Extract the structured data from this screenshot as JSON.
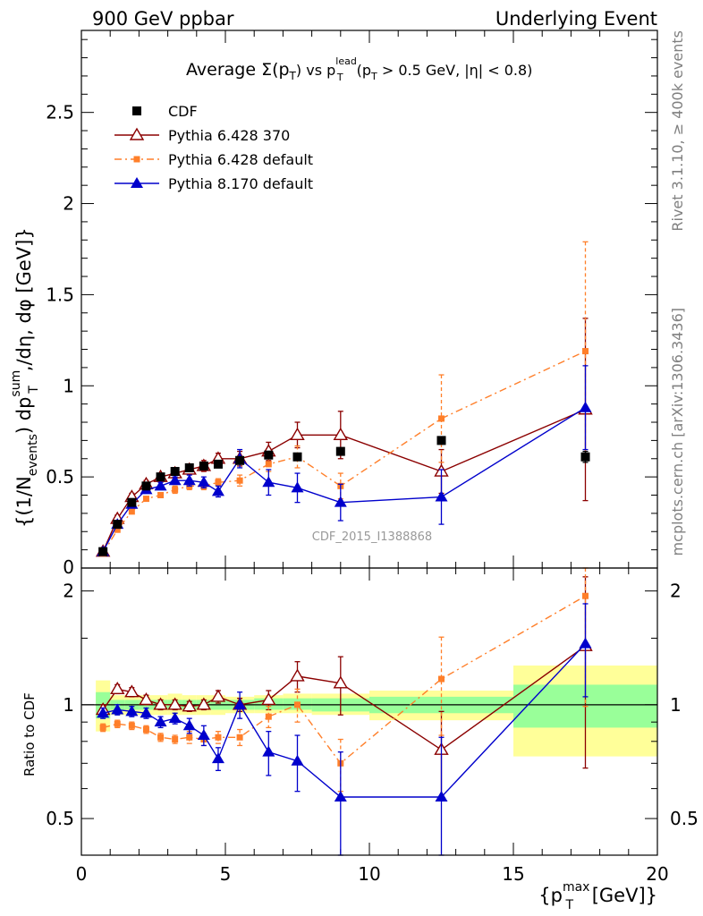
{
  "header": {
    "left": "900 GeV ppbar",
    "right": "Underlying Event"
  },
  "side": {
    "rivet": "Rivet 3.1.10, ≥ 400k events",
    "mcplots": "mcplots.cern.ch [arXiv:1306.3436]"
  },
  "watermark": "CDF_2015_I1388868",
  "chart_data": [
    {
      "type": "scatter",
      "title": {
        "prefix": "Average ",
        "sigma": "Σ(p",
        "sigma_sub": "T",
        "vs": ") vs p",
        "lead_sup": "lead",
        "lead_sub": "T",
        "cut_a": " (p",
        "cut_sub": "T",
        "cut_b": " > 0.5 GeV, |η| < 0.8)"
      },
      "ylabel": {
        "a": "{(1/N",
        "a_sub": "events",
        "b": ") dp",
        "b_sup": "sum",
        "b_sub": "T",
        "c": ",/dη, dφ [GeV]}"
      },
      "ylim": [
        0,
        2.95
      ],
      "xlim": [
        0,
        20
      ],
      "yticks": [
        0.5,
        1,
        1.5,
        2,
        2.5
      ],
      "ytick_labels": [
        "0.5",
        "1",
        "1.5",
        "2",
        "2.5"
      ],
      "y_zero_label": "0",
      "legend_position": "top-left",
      "series": [
        {
          "name": "CDF",
          "color": "#000000",
          "marker": "square",
          "x": [
            0.75,
            1.25,
            1.75,
            2.25,
            2.75,
            3.25,
            3.75,
            4.25,
            4.75,
            5.5,
            6.5,
            7.5,
            9.0,
            12.5,
            17.5
          ],
          "y": [
            0.09,
            0.24,
            0.36,
            0.45,
            0.5,
            0.53,
            0.55,
            0.56,
            0.57,
            0.59,
            0.62,
            0.61,
            0.64,
            0.7,
            0.61
          ],
          "err": [
            0.01,
            0.01,
            0.01,
            0.01,
            0.01,
            0.01,
            0.01,
            0.01,
            0.01,
            0.01,
            0.01,
            0.01,
            0.02,
            0.02,
            0.03
          ]
        },
        {
          "name": "Pythia 6.428 370",
          "color": "#8b0000",
          "marker": "triangle-open",
          "line": "solid",
          "x": [
            0.75,
            1.25,
            1.75,
            2.25,
            2.75,
            3.25,
            3.75,
            4.25,
            4.75,
            5.5,
            6.5,
            7.5,
            9.0,
            12.5,
            17.5
          ],
          "y": [
            0.09,
            0.27,
            0.39,
            0.46,
            0.5,
            0.52,
            0.54,
            0.56,
            0.6,
            0.6,
            0.64,
            0.73,
            0.73,
            0.53,
            0.87
          ],
          "err": [
            0.01,
            0.02,
            0.02,
            0.02,
            0.02,
            0.02,
            0.02,
            0.03,
            0.03,
            0.04,
            0.05,
            0.07,
            0.13,
            0.12,
            0.5
          ]
        },
        {
          "name": "Pythia 6.428 default",
          "color": "#ff7f2a",
          "marker": "square-small",
          "line": "dashdot",
          "x": [
            0.75,
            1.25,
            1.75,
            2.25,
            2.75,
            3.25,
            3.75,
            4.25,
            4.75,
            5.5,
            6.5,
            7.5,
            9.0,
            12.5,
            17.5
          ],
          "y": [
            0.08,
            0.21,
            0.31,
            0.38,
            0.4,
            0.43,
            0.45,
            0.45,
            0.47,
            0.48,
            0.57,
            0.61,
            0.45,
            0.82,
            1.19
          ],
          "err": [
            0.01,
            0.01,
            0.01,
            0.01,
            0.01,
            0.02,
            0.02,
            0.02,
            0.02,
            0.03,
            0.04,
            0.06,
            0.07,
            0.24,
            0.6
          ]
        },
        {
          "name": "Pythia 8.170 default",
          "color": "#0000cc",
          "marker": "triangle-filled",
          "line": "solid",
          "x": [
            0.75,
            1.25,
            1.75,
            2.25,
            2.75,
            3.25,
            3.75,
            4.25,
            4.75,
            5.5,
            6.5,
            7.5,
            9.0,
            12.5,
            17.5
          ],
          "y": [
            0.09,
            0.24,
            0.35,
            0.43,
            0.45,
            0.48,
            0.48,
            0.47,
            0.42,
            0.6,
            0.47,
            0.44,
            0.36,
            0.39,
            0.88
          ],
          "err": [
            0.01,
            0.01,
            0.02,
            0.02,
            0.02,
            0.02,
            0.03,
            0.03,
            0.03,
            0.05,
            0.07,
            0.08,
            0.1,
            0.15,
            0.23
          ]
        }
      ]
    },
    {
      "type": "scatter",
      "ylabel": "Ratio to CDF",
      "xlabel": {
        "a": "{p",
        "a_sup": "max",
        "a_sub": "T",
        "b": " [GeV]}"
      },
      "xlim": [
        0,
        20
      ],
      "ylim": [
        0.4,
        2.3
      ],
      "yscale": "log",
      "yticks": [
        0.5,
        1,
        2
      ],
      "ytick_labels": [
        "0.5",
        "1",
        "2"
      ],
      "xticks": [
        0,
        5,
        10,
        15,
        20
      ],
      "xtick_labels": [
        "0",
        "5",
        "10",
        "15",
        "20"
      ],
      "bands": {
        "colors": {
          "stat": "#99ff99",
          "total": "#ffff99"
        },
        "bins": [
          {
            "x0": 0.5,
            "x1": 1.0,
            "inner": [
              0.92,
              1.08
            ],
            "outer": [
              0.85,
              1.16
            ]
          },
          {
            "x0": 1.0,
            "x1": 1.5,
            "inner": [
              0.97,
              1.03
            ],
            "outer": [
              0.94,
              1.06
            ]
          },
          {
            "x0": 1.5,
            "x1": 2.0,
            "inner": [
              0.97,
              1.03
            ],
            "outer": [
              0.94,
              1.06
            ]
          },
          {
            "x0": 2.0,
            "x1": 2.5,
            "inner": [
              0.97,
              1.03
            ],
            "outer": [
              0.94,
              1.06
            ]
          },
          {
            "x0": 2.5,
            "x1": 3.0,
            "inner": [
              0.97,
              1.03
            ],
            "outer": [
              0.94,
              1.06
            ]
          },
          {
            "x0": 3.0,
            "x1": 3.5,
            "inner": [
              0.97,
              1.03
            ],
            "outer": [
              0.94,
              1.07
            ]
          },
          {
            "x0": 3.5,
            "x1": 4.0,
            "inner": [
              0.97,
              1.03
            ],
            "outer": [
              0.94,
              1.06
            ]
          },
          {
            "x0": 4.0,
            "x1": 4.5,
            "inner": [
              0.97,
              1.03
            ],
            "outer": [
              0.94,
              1.06
            ]
          },
          {
            "x0": 4.5,
            "x1": 5.0,
            "inner": [
              0.97,
              1.03
            ],
            "outer": [
              0.94,
              1.06
            ]
          },
          {
            "x0": 5.0,
            "x1": 6.0,
            "inner": [
              0.97,
              1.03
            ],
            "outer": [
              0.95,
              1.05
            ]
          },
          {
            "x0": 6.0,
            "x1": 7.0,
            "inner": [
              0.97,
              1.04
            ],
            "outer": [
              0.95,
              1.06
            ]
          },
          {
            "x0": 7.0,
            "x1": 8.0,
            "inner": [
              0.97,
              1.04
            ],
            "outer": [
              0.95,
              1.07
            ]
          },
          {
            "x0": 8.0,
            "x1": 10.0,
            "inner": [
              0.96,
              1.04
            ],
            "outer": [
              0.94,
              1.07
            ]
          },
          {
            "x0": 10.0,
            "x1": 15.0,
            "inner": [
              0.95,
              1.05
            ],
            "outer": [
              0.91,
              1.09
            ]
          },
          {
            "x0": 15.0,
            "x1": 20.0,
            "inner": [
              0.87,
              1.13
            ],
            "outer": [
              0.73,
              1.27
            ]
          }
        ]
      },
      "series": [
        {
          "name": "Pythia 6.428 370",
          "color": "#8b0000",
          "marker": "triangle-open",
          "line": "solid",
          "x": [
            0.75,
            1.25,
            1.75,
            2.25,
            2.75,
            3.25,
            3.75,
            4.25,
            4.75,
            5.5,
            6.5,
            7.5,
            9.0,
            12.5,
            17.5
          ],
          "y": [
            0.97,
            1.1,
            1.08,
            1.03,
            1.0,
            1.0,
            0.99,
            1.0,
            1.05,
            1.0,
            1.03,
            1.19,
            1.14,
            0.76,
            1.43
          ],
          "err": [
            0.03,
            0.03,
            0.03,
            0.03,
            0.03,
            0.03,
            0.03,
            0.03,
            0.04,
            0.04,
            0.06,
            0.11,
            0.2,
            0.2,
            0.75
          ]
        },
        {
          "name": "Pythia 6.428 default",
          "color": "#ff7f2a",
          "marker": "square-small",
          "line": "dashdot",
          "x": [
            0.75,
            1.25,
            1.75,
            2.25,
            2.75,
            3.25,
            3.75,
            4.25,
            4.75,
            5.5,
            6.5,
            7.5,
            9.0,
            12.5,
            17.5
          ],
          "y": [
            0.87,
            0.89,
            0.88,
            0.86,
            0.82,
            0.81,
            0.82,
            0.81,
            0.82,
            0.82,
            0.93,
            1.0,
            0.7,
            1.17,
            1.94
          ],
          "err": [
            0.02,
            0.02,
            0.02,
            0.02,
            0.02,
            0.02,
            0.03,
            0.03,
            0.03,
            0.04,
            0.06,
            0.1,
            0.11,
            0.34,
            0.95
          ]
        },
        {
          "name": "Pythia 8.170 default",
          "color": "#0000cc",
          "marker": "triangle-filled",
          "line": "solid",
          "x": [
            0.75,
            1.25,
            1.75,
            2.25,
            2.75,
            3.25,
            3.75,
            4.25,
            4.75,
            5.5,
            6.5,
            7.5,
            9.0,
            12.5,
            17.5
          ],
          "y": [
            0.95,
            0.97,
            0.96,
            0.95,
            0.9,
            0.92,
            0.88,
            0.83,
            0.72,
            1.0,
            0.75,
            0.71,
            0.57,
            0.57,
            1.45
          ],
          "err": [
            0.03,
            0.03,
            0.03,
            0.03,
            0.03,
            0.03,
            0.04,
            0.05,
            0.05,
            0.08,
            0.1,
            0.12,
            0.18,
            0.25,
            0.4
          ]
        }
      ]
    }
  ]
}
